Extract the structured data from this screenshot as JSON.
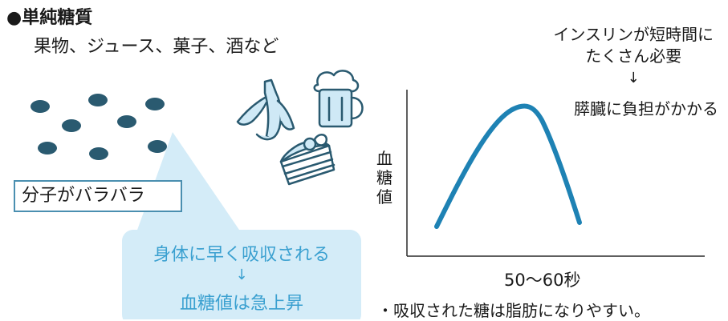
{
  "title": "●単純糖質",
  "examples": "果物、ジュース、菓子、酒など",
  "molecule_label": "分子がバラバラ",
  "callout": {
    "line1": "身体に早く吸収される",
    "arrow": "↓",
    "line2": "血糖値は急上昇"
  },
  "notes": {
    "insulin_line1": "インスリンが短時間に",
    "insulin_line2": "たくさん必要",
    "arrow": "↓",
    "pancreas": "膵臓に負担がかかる"
  },
  "graph": {
    "ylabel_chars": [
      "血",
      "糖",
      "値"
    ],
    "xlabel": "50〜60秒"
  },
  "footnote": "・吸収された糖は脂肪になりやすい。",
  "colors": {
    "curve": "#1e82b4",
    "dot": "#2a5a70",
    "callout_bg": "#d4ecf8",
    "callout_text": "#3aa0d0",
    "box_border": "#4a8fb0",
    "icon_stroke": "#2a5a70",
    "icon_fill": "#cfe9f6"
  },
  "icons": [
    "banana-icon",
    "beer-mug-icon",
    "cake-icon"
  ]
}
